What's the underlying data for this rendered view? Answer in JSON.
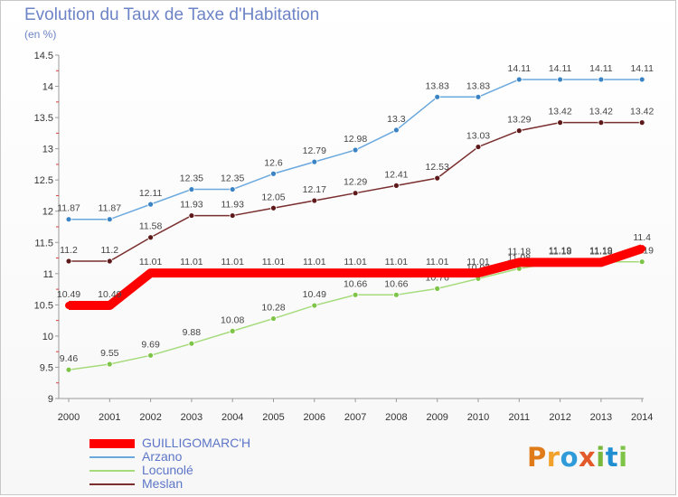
{
  "chart_data": {
    "type": "line",
    "title": "Evolution du Taux de Taxe d'Habitation",
    "subtitle": "(en %)",
    "categories": [
      "2000",
      "2001",
      "2002",
      "2003",
      "2004",
      "2005",
      "2006",
      "2007",
      "2008",
      "2009",
      "2010",
      "2011",
      "2012",
      "2013",
      "2014"
    ],
    "ylim": [
      9,
      14.5
    ],
    "yticks": [
      "9",
      "9.5",
      "10",
      "10.5",
      "11",
      "11.5",
      "12",
      "12.5",
      "13",
      "13.5",
      "14",
      "14.5"
    ],
    "series": [
      {
        "name": "Arzano",
        "color": "#6aa8de",
        "marker": "#3a84c6",
        "values": [
          11.87,
          11.87,
          12.11,
          12.35,
          12.35,
          12.6,
          12.79,
          12.98,
          13.3,
          13.83,
          13.83,
          14.11,
          14.11,
          14.11,
          14.11
        ],
        "labels": [
          "11.87",
          "11.87",
          "12.11",
          "12.35",
          "12.35",
          "12.6",
          "12.79",
          "12.98",
          "13.3",
          "13.83",
          "13.83",
          "14.11",
          "14.11",
          "14.11",
          "14.11"
        ]
      },
      {
        "name": "Meslan",
        "color": "#7a2e2e",
        "marker": "#5e1a1a",
        "values": [
          11.2,
          11.2,
          11.58,
          11.93,
          11.93,
          12.05,
          12.17,
          12.29,
          12.41,
          12.53,
          13.03,
          13.29,
          13.42,
          13.42,
          13.42
        ],
        "labels": [
          "11.2",
          "11.2",
          "11.58",
          "11.93",
          "11.93",
          "12.05",
          "12.17",
          "12.29",
          "12.41",
          "12.53",
          "13.03",
          "13.29",
          "13.42",
          "13.42",
          "13.42"
        ]
      },
      {
        "name": "Locunolé",
        "color": "#a6db7c",
        "marker": "#7dc447",
        "values": [
          9.46,
          9.55,
          9.69,
          9.88,
          10.08,
          10.28,
          10.49,
          10.66,
          10.66,
          10.76,
          10.92,
          11.08,
          11.19,
          11.19,
          11.19
        ],
        "labels": [
          "9.46",
          "9.55",
          "9.69",
          "9.88",
          "10.08",
          "10.28",
          "10.49",
          "10.66",
          "10.66",
          "10.76",
          "10.92",
          "11.08",
          "11.19",
          "11.19",
          "11.19"
        ]
      },
      {
        "name": "GUILLIGOMARC'H",
        "color": "#ff0000",
        "marker": "#ff0000",
        "values": [
          10.49,
          10.49,
          11.01,
          11.01,
          11.01,
          11.01,
          11.01,
          11.01,
          11.01,
          11.01,
          11.01,
          11.18,
          11.18,
          11.18,
          11.4
        ],
        "labels": [
          "10.49",
          "10.49",
          "11.01",
          "11.01",
          "11.01",
          "11.01",
          "11.01",
          "11.01",
          "11.01",
          "11.01",
          "11.01",
          "11.18",
          "11.18",
          "11.18",
          "11.4"
        ]
      }
    ],
    "legend": [
      "GUILLIGOMARC'H",
      "Arzano",
      "Locunolé",
      "Meslan"
    ]
  },
  "brand": {
    "letters": [
      "P",
      "r",
      "o",
      "x",
      "i",
      "t",
      "i"
    ],
    "colors": [
      "#e07b1a",
      "#f2a12b",
      "#2f9bd8",
      "#e35a2a",
      "#79b83a",
      "#1f8fd2",
      "#7dc447"
    ]
  }
}
